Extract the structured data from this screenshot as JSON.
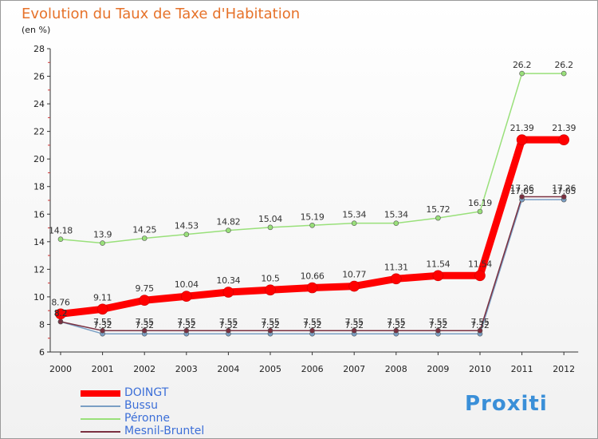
{
  "title": "Evolution du Taux de Taxe d'Habitation",
  "unit_label": "(en %)",
  "brand": "Proxiti",
  "chart_data": {
    "type": "line",
    "title": "Evolution du Taux de Taxe d'Habitation",
    "ylabel": "(en %)",
    "xlabel": "",
    "categories": [
      "2000",
      "2001",
      "2002",
      "2003",
      "2004",
      "2005",
      "2006",
      "2007",
      "2008",
      "2009",
      "2010",
      "2011",
      "2012"
    ],
    "ylim": [
      6,
      28
    ],
    "yticks": [
      6,
      8,
      10,
      12,
      14,
      16,
      18,
      20,
      22,
      24,
      26,
      28
    ],
    "grid": false,
    "legend": "bottom-left",
    "series": [
      {
        "name": "DOINGT",
        "color": "#ff0000",
        "width": 9,
        "values": [
          8.76,
          9.11,
          9.75,
          10.04,
          10.34,
          10.5,
          10.66,
          10.77,
          11.31,
          11.54,
          11.54,
          21.39,
          21.39
        ],
        "labels": [
          "8.76",
          "9.11",
          "9.75",
          "10.04",
          "10.34",
          "10.5",
          "10.66",
          "10.77",
          "11.31",
          "11.54",
          "11.54",
          "21.39",
          "21.39"
        ]
      },
      {
        "name": "Bussu",
        "color": "#7a9fc4",
        "width": 1.5,
        "values": [
          8.2,
          7.32,
          7.32,
          7.32,
          7.32,
          7.32,
          7.32,
          7.32,
          7.32,
          7.32,
          7.32,
          17.05,
          17.05
        ],
        "labels": [
          "8.2",
          "7.32",
          "7.32",
          "7.32",
          "7.32",
          "7.32",
          "7.32",
          "7.32",
          "7.32",
          "7.32",
          "7.32",
          "17.05",
          "17.05"
        ]
      },
      {
        "name": "Péronne",
        "color": "#99e07a",
        "width": 1.5,
        "values": [
          14.18,
          13.9,
          14.25,
          14.53,
          14.82,
          15.04,
          15.19,
          15.34,
          15.34,
          15.72,
          16.19,
          26.2,
          26.2
        ],
        "labels": [
          "14.18",
          "13.9",
          "14.25",
          "14.53",
          "14.82",
          "15.04",
          "15.19",
          "15.34",
          "15.34",
          "15.72",
          "16.19",
          "26.2",
          "26.2"
        ]
      },
      {
        "name": "Mesnil-Bruntel",
        "color": "#7a3040",
        "width": 1.5,
        "values": [
          8.2,
          7.55,
          7.55,
          7.55,
          7.55,
          7.55,
          7.55,
          7.55,
          7.55,
          7.55,
          7.55,
          17.26,
          17.26
        ],
        "labels": [
          "8.2",
          "7.55",
          "7.55",
          "7.55",
          "7.55",
          "7.55",
          "7.55",
          "7.55",
          "7.55",
          "7.55",
          "7.55",
          "17.26",
          "17.26"
        ]
      }
    ]
  }
}
